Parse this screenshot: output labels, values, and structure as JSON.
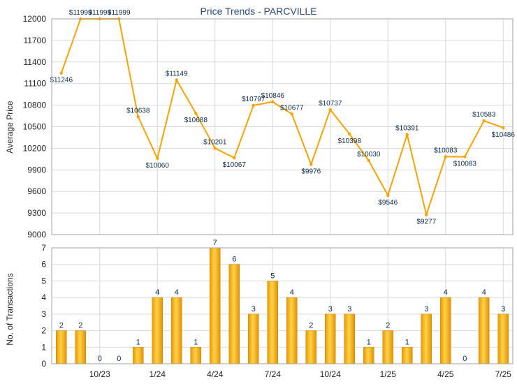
{
  "chart_data": [
    {
      "type": "line",
      "title": "Price Trends - PARCVILLE",
      "ylabel": "Average Price",
      "ylim": [
        9000,
        12000
      ],
      "yticks": [
        9000,
        9300,
        9600,
        9900,
        10200,
        10500,
        10800,
        11100,
        11400,
        11700,
        12000
      ],
      "x_tick_labels": [
        "10/23",
        "1/24",
        "4/24",
        "7/24",
        "10/24",
        "1/25",
        "4/25",
        "7/25"
      ],
      "grid": true,
      "line_color": "#f5a300",
      "points": [
        {
          "value": 11246,
          "label": "$11246"
        },
        {
          "value": 11999,
          "label": "$11999"
        },
        {
          "value": 11999,
          "label": "$11999"
        },
        {
          "value": 11999,
          "label": "$11999"
        },
        {
          "value": 10638,
          "label": "$10638"
        },
        {
          "value": 10060,
          "label": "$10060"
        },
        {
          "value": 11149,
          "label": "$11149"
        },
        {
          "value": 10688,
          "label": "$10688"
        },
        {
          "value": 10201,
          "label": "$10201"
        },
        {
          "value": 10067,
          "label": "$10067"
        },
        {
          "value": 10797,
          "label": "$10797"
        },
        {
          "value": 10846,
          "label": "$10846"
        },
        {
          "value": 10677,
          "label": "$10677"
        },
        {
          "value": 9976,
          "label": "$9976"
        },
        {
          "value": 10737,
          "label": "$10737"
        },
        {
          "value": 10398,
          "label": "$10398"
        },
        {
          "value": 10030,
          "label": "$10030"
        },
        {
          "value": 9546,
          "label": "$9546"
        },
        {
          "value": 10391,
          "label": "$10391"
        },
        {
          "value": 9277,
          "label": "$9277"
        },
        {
          "value": 10083,
          "label": "$10083"
        },
        {
          "value": 10083,
          "label": "$10083"
        },
        {
          "value": 10583,
          "label": "$10583"
        },
        {
          "value": 10486,
          "label": "$10486"
        }
      ]
    },
    {
      "type": "bar",
      "ylabel": "No. of Transactions",
      "ylim": [
        0,
        7
      ],
      "yticks": [
        0,
        1,
        2,
        3,
        4,
        5,
        6,
        7
      ],
      "x_tick_labels": [
        "10/23",
        "1/24",
        "4/24",
        "7/24",
        "10/24",
        "1/25",
        "4/25",
        "7/25"
      ],
      "grid": true,
      "bar_color": "#f0a800",
      "values": [
        2,
        2,
        0,
        0,
        1,
        4,
        4,
        1,
        7,
        6,
        3,
        5,
        4,
        2,
        3,
        3,
        1,
        2,
        1,
        3,
        4,
        0,
        4,
        3
      ]
    }
  ]
}
